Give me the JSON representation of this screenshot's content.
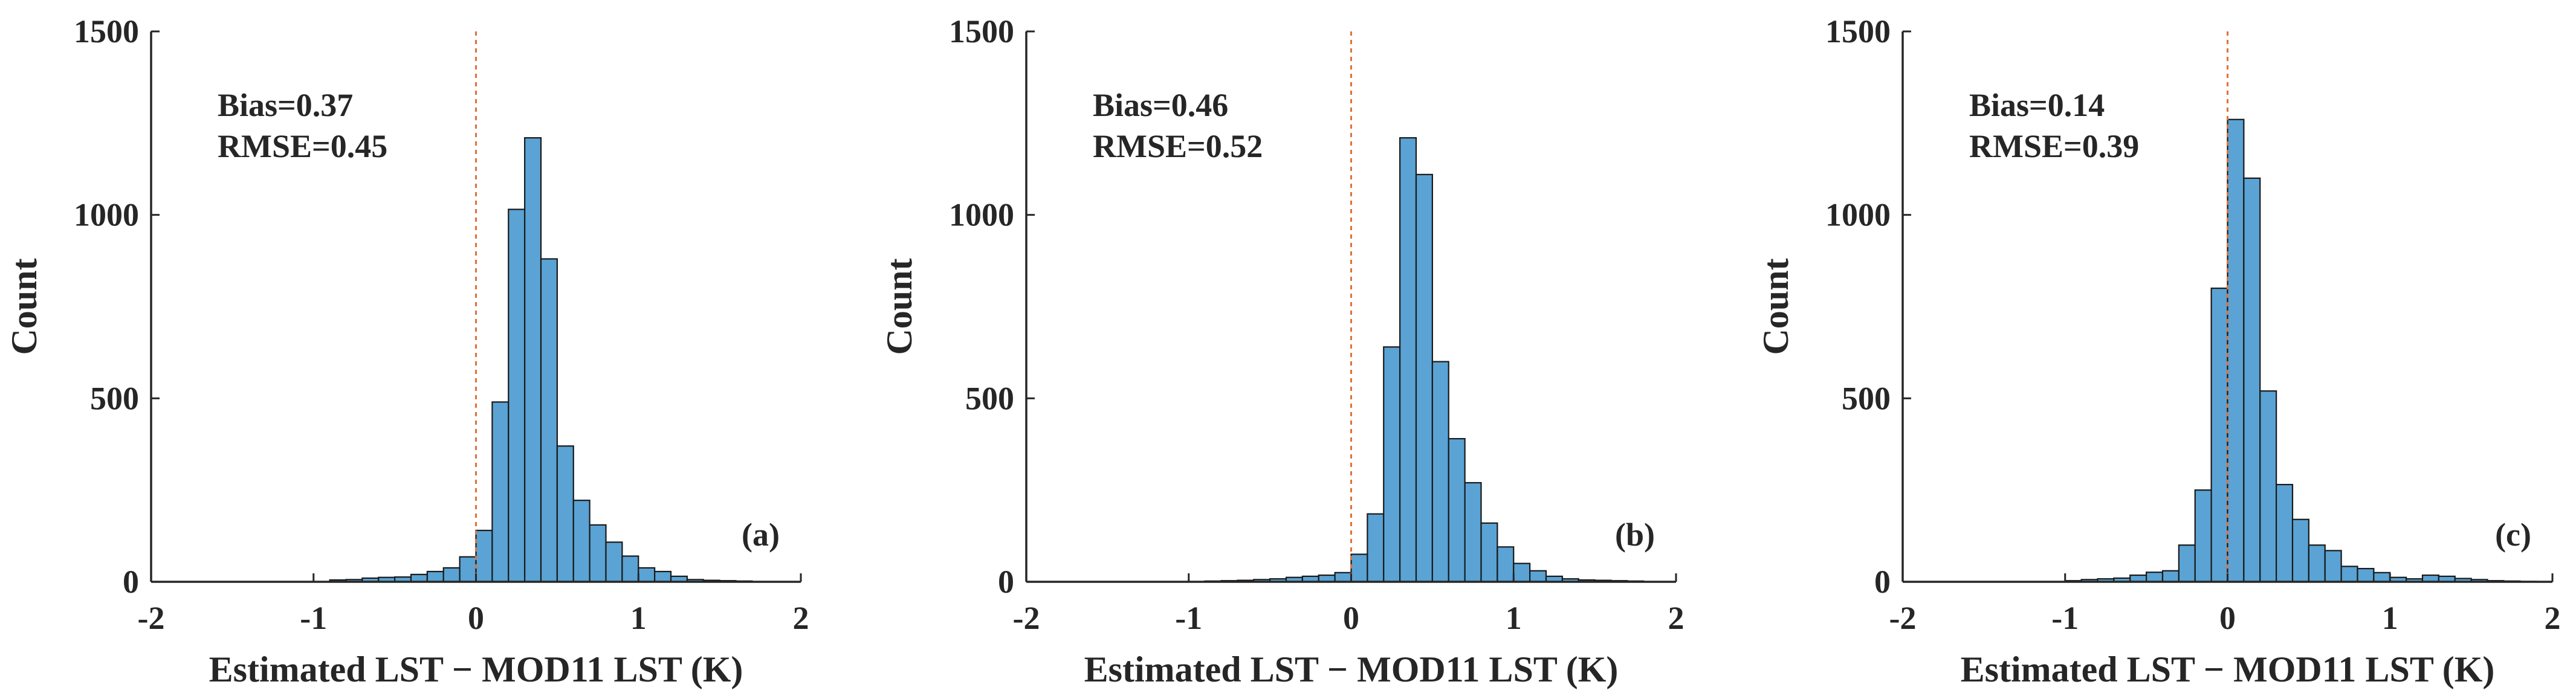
{
  "chart_data": [
    {
      "type": "bar",
      "panel_label": "(a)",
      "title": "",
      "xlabel": "Estimated LST − MOD11 LST (K)",
      "ylabel": "Count",
      "xlim": [
        -2,
        2
      ],
      "ylim": [
        0,
        1500
      ],
      "xticks": [
        -2,
        -1,
        0,
        1,
        2
      ],
      "yticks": [
        0,
        500,
        1000,
        1500
      ],
      "annotations": [
        "Bias=0.37",
        "RMSE=0.45"
      ],
      "reference_line_x": 0,
      "bin_width": 0.1,
      "bin_left_edges": [
        -0.9,
        -0.8,
        -0.7,
        -0.6,
        -0.5,
        -0.4,
        -0.3,
        -0.2,
        -0.1,
        0.0,
        0.1,
        0.2,
        0.3,
        0.4,
        0.5,
        0.6,
        0.7,
        0.8,
        0.9,
        1.0,
        1.1,
        1.2,
        1.3,
        1.4,
        1.5,
        1.6
      ],
      "values": [
        5,
        6,
        10,
        12,
        13,
        20,
        28,
        38,
        68,
        140,
        490,
        1015,
        1210,
        880,
        370,
        222,
        155,
        108,
        70,
        38,
        28,
        15,
        6,
        4,
        3,
        2
      ]
    },
    {
      "type": "bar",
      "panel_label": "(b)",
      "title": "",
      "xlabel": "Estimated LST − MOD11 LST (K)",
      "ylabel": "Count",
      "xlim": [
        -2,
        2
      ],
      "ylim": [
        0,
        1500
      ],
      "xticks": [
        -2,
        -1,
        0,
        1,
        2
      ],
      "yticks": [
        0,
        500,
        1000,
        1500
      ],
      "annotations": [
        "Bias=0.46",
        "RMSE=0.52"
      ],
      "reference_line_x": 0,
      "bin_width": 0.1,
      "bin_left_edges": [
        -0.9,
        -0.8,
        -0.7,
        -0.6,
        -0.5,
        -0.4,
        -0.3,
        -0.2,
        -0.1,
        0.0,
        0.1,
        0.2,
        0.3,
        0.4,
        0.5,
        0.6,
        0.7,
        0.8,
        0.9,
        1.0,
        1.1,
        1.2,
        1.3,
        1.4,
        1.5,
        1.6,
        1.7
      ],
      "values": [
        2,
        3,
        4,
        6,
        8,
        12,
        15,
        18,
        25,
        75,
        185,
        640,
        1210,
        1110,
        600,
        390,
        270,
        160,
        95,
        50,
        30,
        15,
        8,
        5,
        4,
        3,
        2
      ]
    },
    {
      "type": "bar",
      "panel_label": "(c)",
      "title": "",
      "xlabel": "Estimated LST − MOD11 LST (K)",
      "ylabel": "Count",
      "xlim": [
        -2,
        2
      ],
      "ylim": [
        0,
        1500
      ],
      "xticks": [
        -2,
        -1,
        0,
        1,
        2
      ],
      "yticks": [
        0,
        500,
        1000,
        1500
      ],
      "annotations": [
        "Bias=0.14",
        "RMSE=0.39"
      ],
      "reference_line_x": 0,
      "bin_width": 0.1,
      "bin_left_edges": [
        -1.0,
        -0.9,
        -0.8,
        -0.7,
        -0.6,
        -0.5,
        -0.4,
        -0.3,
        -0.2,
        -0.1,
        0.0,
        0.1,
        0.2,
        0.3,
        0.4,
        0.5,
        0.6,
        0.7,
        0.8,
        0.9,
        1.0,
        1.1,
        1.2,
        1.3,
        1.4,
        1.5,
        1.6,
        1.7,
        1.8
      ],
      "values": [
        3,
        6,
        8,
        10,
        18,
        26,
        30,
        100,
        250,
        800,
        1260,
        1100,
        520,
        265,
        170,
        100,
        85,
        42,
        36,
        25,
        12,
        8,
        18,
        15,
        9,
        6,
        3,
        2,
        1
      ]
    }
  ]
}
